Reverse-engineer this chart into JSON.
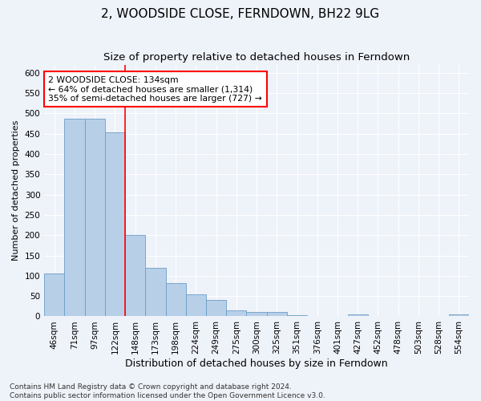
{
  "title1": "2, WOODSIDE CLOSE, FERNDOWN, BH22 9LG",
  "title2": "Size of property relative to detached houses in Ferndown",
  "xlabel": "Distribution of detached houses by size in Ferndown",
  "ylabel": "Number of detached properties",
  "categories": [
    "46sqm",
    "71sqm",
    "97sqm",
    "122sqm",
    "148sqm",
    "173sqm",
    "198sqm",
    "224sqm",
    "249sqm",
    "275sqm",
    "300sqm",
    "325sqm",
    "351sqm",
    "376sqm",
    "401sqm",
    "427sqm",
    "452sqm",
    "478sqm",
    "503sqm",
    "528sqm",
    "554sqm"
  ],
  "values": [
    105,
    487,
    487,
    453,
    200,
    120,
    82,
    55,
    40,
    15,
    10,
    10,
    3,
    1,
    1,
    5,
    1,
    1,
    1,
    0,
    5
  ],
  "bar_color": "#b8cfe8",
  "bar_edge_color": "#6a9ec5",
  "vline_x": 3.5,
  "vline_color": "red",
  "annotation_text": "2 WOODSIDE CLOSE: 134sqm\n← 64% of detached houses are smaller (1,314)\n35% of semi-detached houses are larger (727) →",
  "annotation_box_color": "white",
  "annotation_box_edgecolor": "red",
  "ylim": [
    0,
    620
  ],
  "yticks": [
    0,
    50,
    100,
    150,
    200,
    250,
    300,
    350,
    400,
    450,
    500,
    550,
    600
  ],
  "footer": "Contains HM Land Registry data © Crown copyright and database right 2024.\nContains public sector information licensed under the Open Government Licence v3.0.",
  "background_color": "#eef2f9",
  "plot_bg_color": "#eef2f9",
  "title1_fontsize": 11,
  "title2_fontsize": 9.5,
  "xlabel_fontsize": 9,
  "ylabel_fontsize": 8,
  "footer_fontsize": 6.5,
  "tick_fontsize": 7.5,
  "annotation_fontsize": 7.8
}
